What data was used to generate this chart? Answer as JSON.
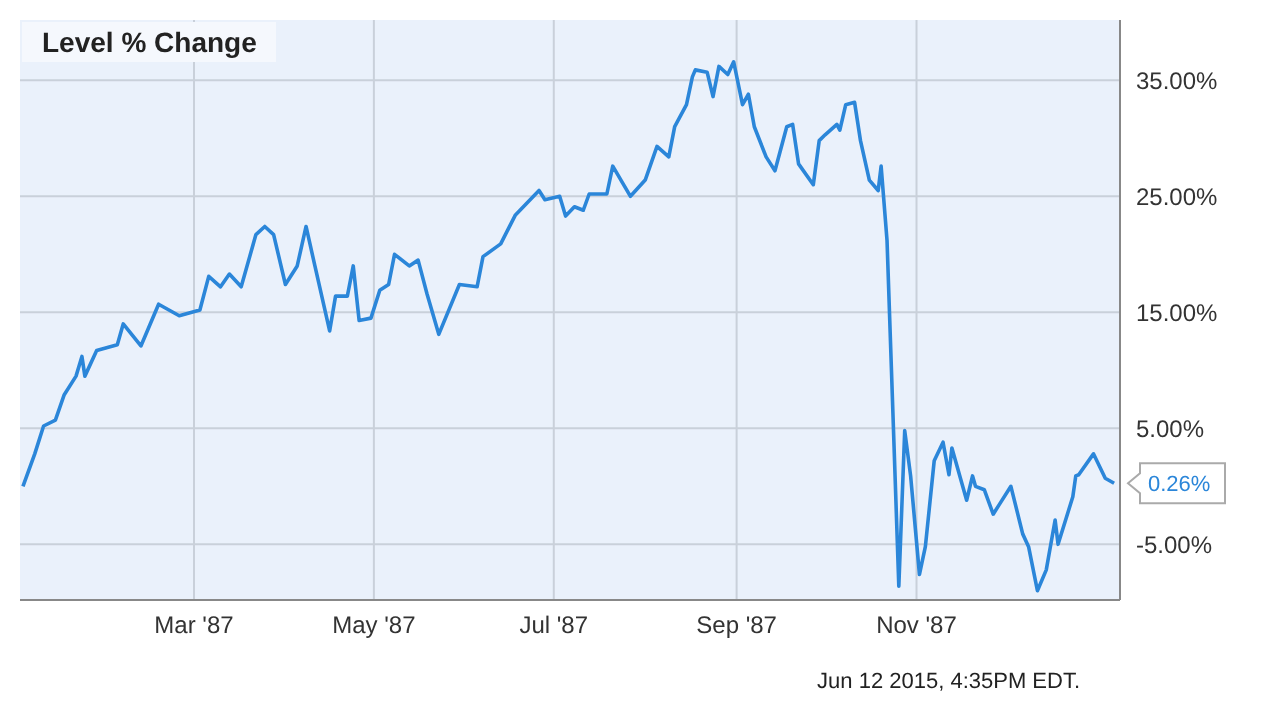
{
  "chart_data": {
    "type": "line",
    "title": "Level % Change",
    "annotations": [
      "Jun 12 2015, 4:35PM EDT."
    ],
    "x": [
      "1987-01-02",
      "1987-01-06",
      "1987-01-09",
      "1987-01-13",
      "1987-01-16",
      "1987-01-20",
      "1987-01-22",
      "1987-01-23",
      "1987-01-27",
      "1987-02-03",
      "1987-02-05",
      "1987-02-11",
      "1987-02-17",
      "1987-02-24",
      "1987-03-03",
      "1987-03-06",
      "1987-03-10",
      "1987-03-13",
      "1987-03-17",
      "1987-03-22",
      "1987-03-25",
      "1987-03-28",
      "1987-04-01",
      "1987-04-05",
      "1987-04-08",
      "1987-04-11",
      "1987-04-16",
      "1987-04-18",
      "1987-04-22",
      "1987-04-24",
      "1987-04-26",
      "1987-04-30",
      "1987-05-03",
      "1987-05-06",
      "1987-05-08",
      "1987-05-13",
      "1987-05-16",
      "1987-05-19",
      "1987-05-23",
      "1987-05-30",
      "1987-06-05",
      "1987-06-07",
      "1987-06-13",
      "1987-06-18",
      "1987-06-26",
      "1987-06-28",
      "1987-07-03",
      "1987-07-05",
      "1987-07-08",
      "1987-07-11",
      "1987-07-13",
      "1987-07-19",
      "1987-07-21",
      "1987-07-27",
      "1987-08-01",
      "1987-08-05",
      "1987-08-09",
      "1987-08-11",
      "1987-08-15",
      "1987-08-17",
      "1987-08-18",
      "1987-08-22",
      "1987-08-24",
      "1987-08-26",
      "1987-08-29",
      "1987-08-31",
      "1987-09-03",
      "1987-09-05",
      "1987-09-07",
      "1987-09-11",
      "1987-09-14",
      "1987-09-18",
      "1987-09-20",
      "1987-09-22",
      "1987-09-27",
      "1987-09-29",
      "1987-10-01",
      "1987-10-05",
      "1987-10-06",
      "1987-10-08",
      "1987-10-11",
      "1987-10-13",
      "1987-10-16",
      "1987-10-19",
      "1987-10-20",
      "1987-10-22",
      "1987-10-26",
      "1987-10-28",
      "1987-10-30",
      "1987-11-02",
      "1987-11-04",
      "1987-11-07",
      "1987-11-10",
      "1987-11-12",
      "1987-11-13",
      "1987-11-18",
      "1987-11-20",
      "1987-11-21",
      "1987-11-24",
      "1987-11-27",
      "1987-11-29",
      "1987-12-03",
      "1987-12-07",
      "1987-12-09",
      "1987-12-12",
      "1987-12-15",
      "1987-12-18",
      "1987-12-19",
      "1987-12-24",
      "1987-12-25",
      "1987-12-26",
      "1987-12-31",
      "1988-01-04",
      "1988-01-07"
    ],
    "series": [
      {
        "color": "#2b86d9",
        "values": [
          0,
          2.8,
          5.2,
          5.7,
          7.9,
          9.5,
          11.2,
          9.5,
          11.7,
          12.2,
          14,
          12.1,
          15.7,
          14.7,
          15.2,
          18.1,
          17.2,
          18.3,
          17.2,
          21.7,
          22.4,
          21.7,
          17.4,
          19,
          22.4,
          19,
          13.4,
          16.4,
          16.4,
          19,
          14.3,
          14.5,
          16.9,
          17.4,
          20,
          19,
          19.5,
          16.6,
          13.1,
          17.4,
          17.2,
          19.8,
          20.9,
          23.4,
          25.5,
          24.7,
          25,
          23.3,
          24.1,
          23.8,
          25.2,
          25.2,
          27.6,
          25,
          26.4,
          29.3,
          28.4,
          31,
          32.9,
          35.3,
          35.9,
          35.7,
          33.6,
          36.2,
          35.5,
          36.6,
          32.9,
          33.8,
          31,
          28.4,
          27.2,
          31,
          31.2,
          27.8,
          26,
          29.8,
          30.3,
          31.2,
          30.7,
          32.9,
          33.1,
          29.8,
          26.4,
          25.5,
          27.6,
          21.2,
          -8.6,
          4.8,
          0.9,
          -7.6,
          -5.2,
          2.2,
          3.8,
          1,
          3.3,
          -1.2,
          0.9,
          0,
          -0.3,
          -2.4,
          -1.6,
          0,
          -4.1,
          -5.2,
          -9,
          -7.2,
          -2.9,
          -5,
          -0.9,
          0.9,
          1,
          2.8,
          0.7,
          0.26
        ],
        "value_labels": [
          null,
          null,
          null,
          null,
          null,
          null,
          null,
          null,
          null,
          null,
          null,
          null,
          null,
          null,
          null,
          null,
          null,
          null,
          null,
          null,
          null,
          null,
          null,
          null,
          null,
          null,
          null,
          null,
          null,
          null,
          null,
          null,
          null,
          null,
          null,
          null,
          null,
          null,
          null,
          null,
          null,
          null,
          null,
          null,
          null,
          null,
          null,
          null,
          null,
          null,
          null,
          null,
          null,
          null,
          null,
          null,
          null,
          null,
          null,
          null,
          null,
          null,
          null,
          null,
          null,
          null,
          null,
          null,
          null,
          null,
          null,
          null,
          null,
          null,
          null,
          null,
          null,
          null,
          null,
          null,
          null,
          null,
          null,
          null,
          null,
          null,
          null,
          null,
          null,
          null,
          null,
          null,
          null,
          null,
          null,
          null,
          null,
          null,
          null,
          null,
          null,
          null,
          null,
          null,
          null,
          null,
          null,
          null,
          null,
          null,
          null,
          null,
          null,
          "0.26%"
        ]
      }
    ],
    "xlim": [
      "1987-01-01",
      "1988-01-09"
    ],
    "xticks": [
      {
        "value": "1987-03-01",
        "label": "Mar '87"
      },
      {
        "value": "1987-05-01",
        "label": "May '87"
      },
      {
        "value": "1987-07-01",
        "label": "Jul '87"
      },
      {
        "value": "1987-09-01",
        "label": "Sep '87"
      },
      {
        "value": "1987-11-01",
        "label": "Nov '87"
      }
    ],
    "ylim": [
      -9.8,
      40.2
    ],
    "yticks": [
      {
        "value": -5,
        "label": "-5.00%"
      },
      {
        "value": 5,
        "label": "5.00%"
      },
      {
        "value": 15,
        "label": "15.00%"
      },
      {
        "value": 25,
        "label": "25.00%"
      },
      {
        "value": 35,
        "label": "35.00%"
      }
    ],
    "grid": true,
    "marker": "none",
    "line_style": "solid"
  }
}
